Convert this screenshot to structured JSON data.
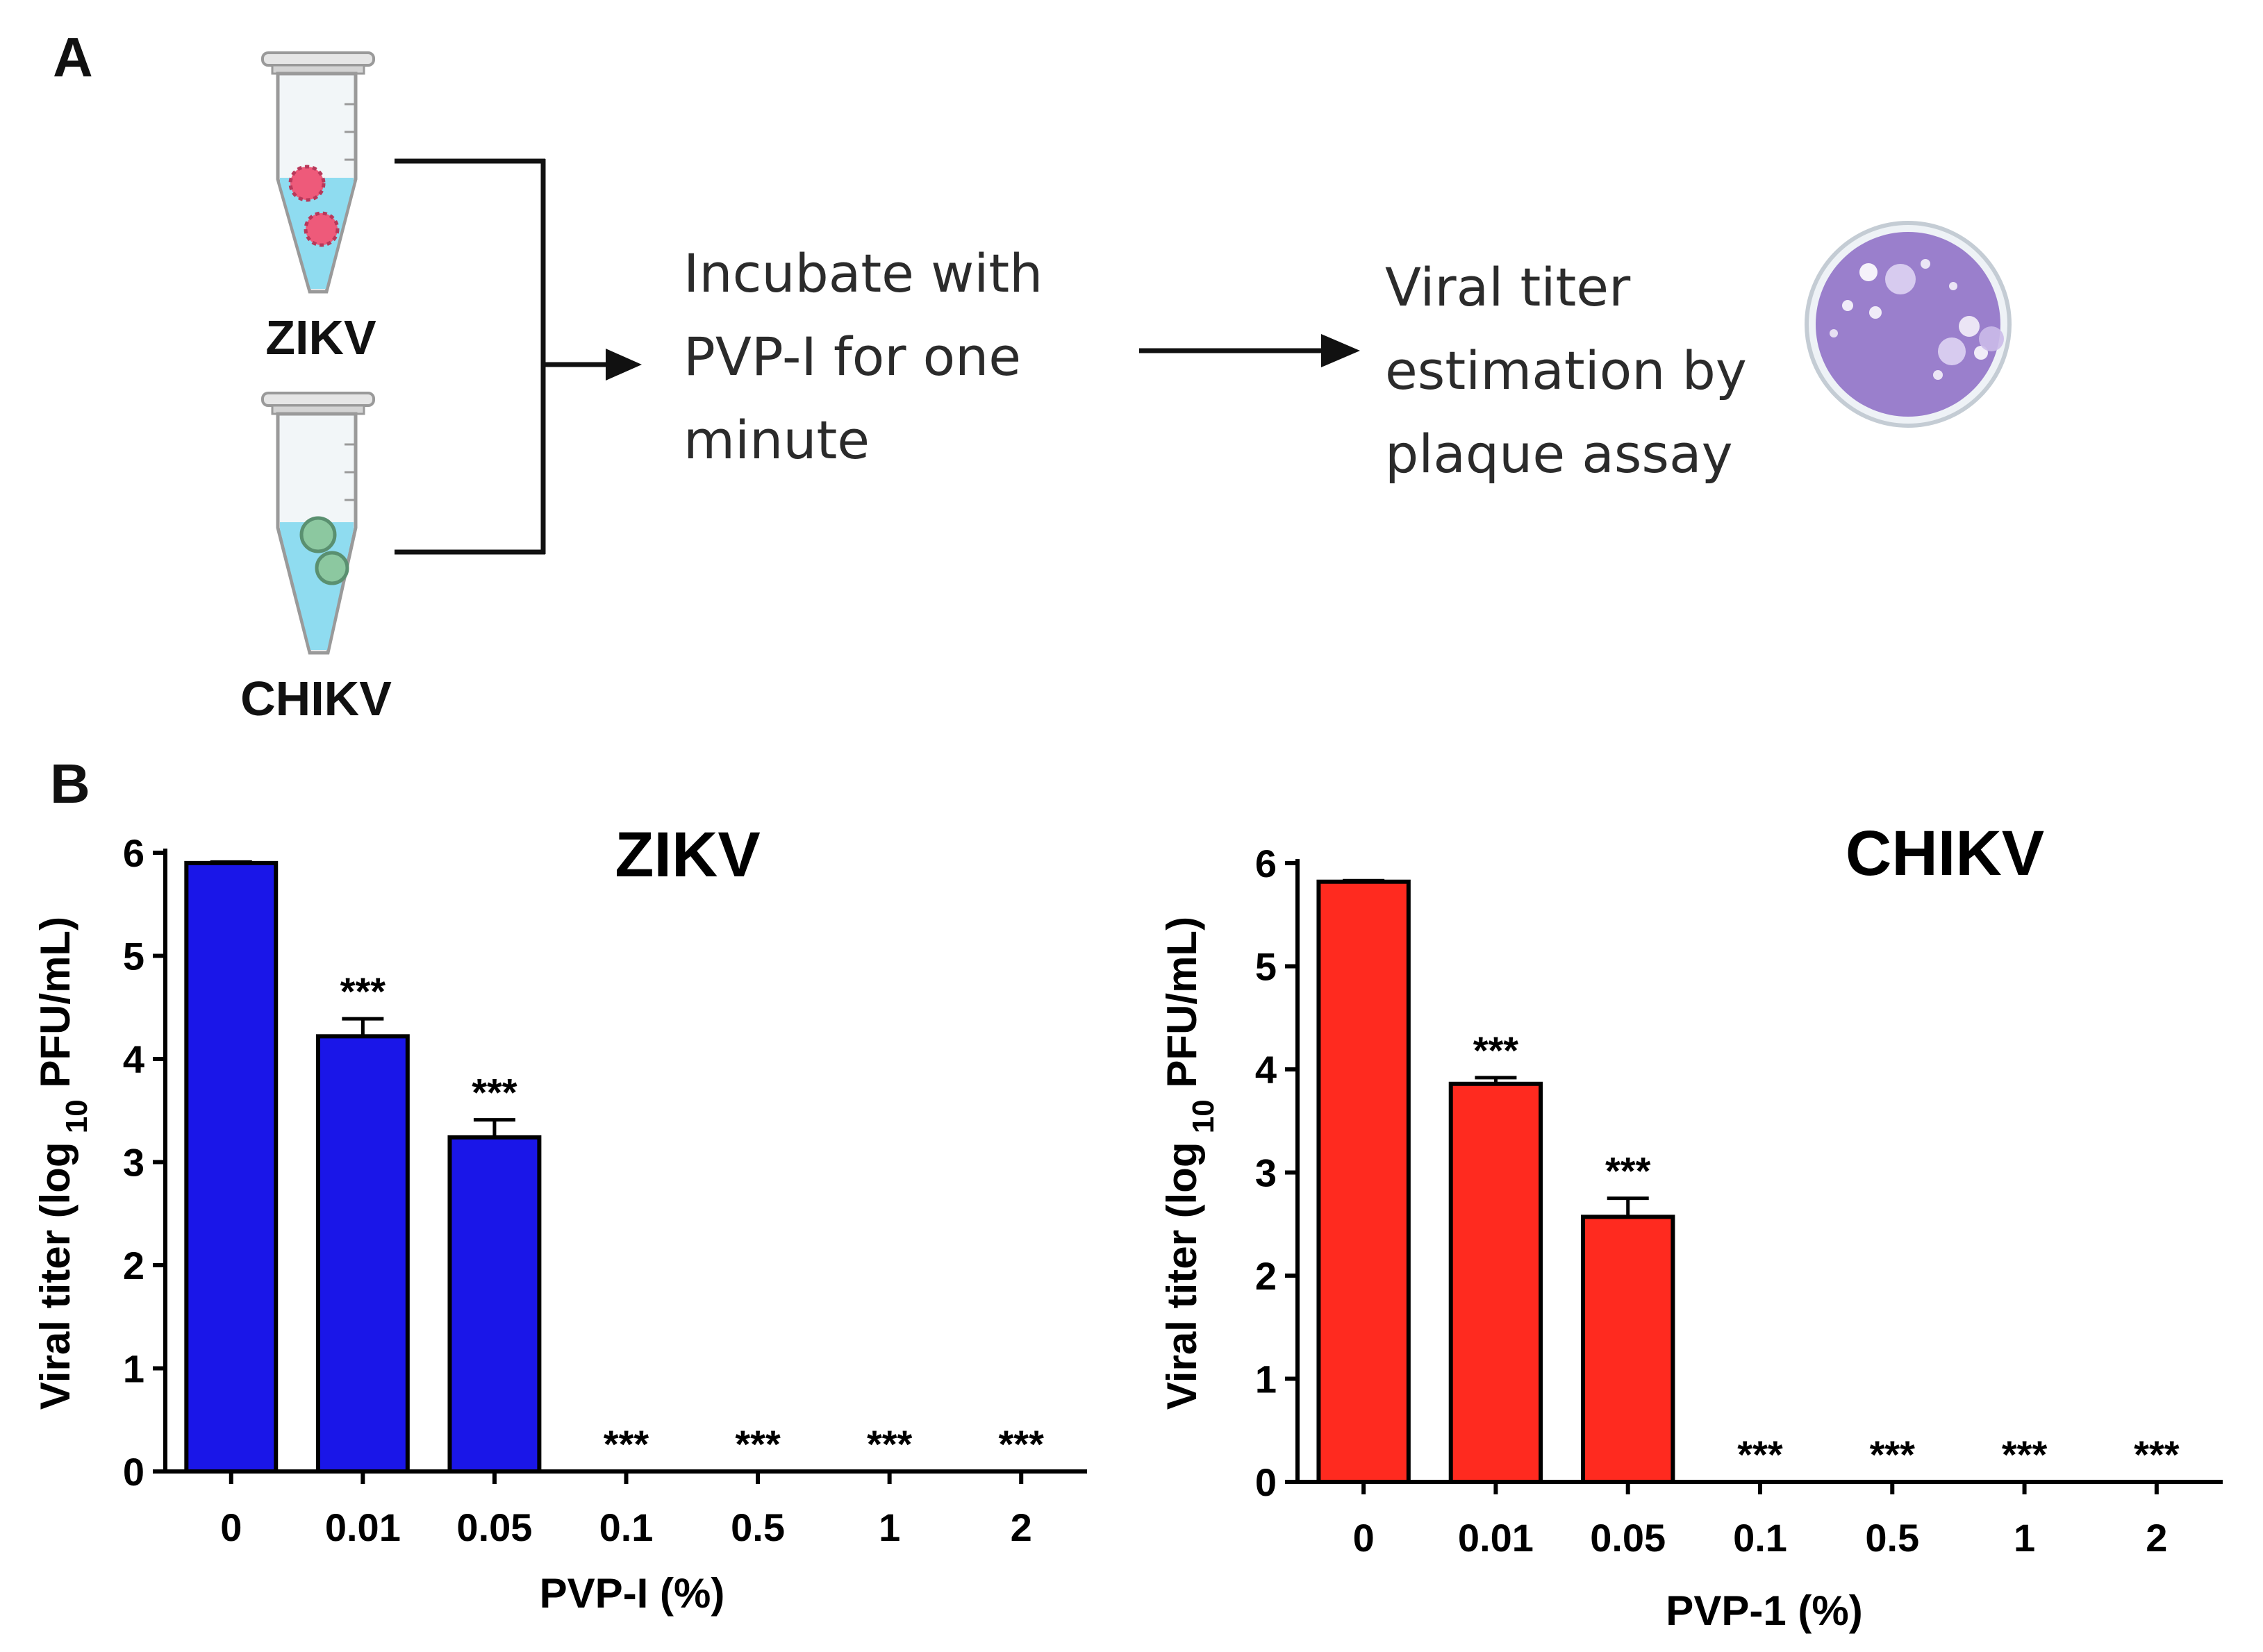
{
  "panel_a": {
    "letter": "A",
    "virus1": "ZIKV",
    "virus2": "CHIKV",
    "step1_lines": [
      "Incubate with",
      "PVP-I for one",
      "minute"
    ],
    "step2_lines": [
      "Viral titer",
      "estimation by",
      "plaque assay"
    ]
  },
  "panel_b": {
    "letter": "B"
  },
  "colors": {
    "zikv_bar": "#1a16e8",
    "chikv_bar": "#ff2a1f",
    "tube_fluid": "#8fdcf0",
    "zikv_virion": "#ee5a7a",
    "chikv_virion": "#8cc8a0",
    "plate": "#9a7fcc"
  },
  "chart_data": [
    {
      "type": "bar",
      "title": "ZIKV",
      "categories": [
        "0",
        "0.01",
        "0.05",
        "0.1",
        "0.5",
        "1",
        "2"
      ],
      "values": [
        5.9,
        4.22,
        3.24,
        0,
        0,
        0,
        0
      ],
      "error": [
        0.01,
        0.17,
        0.17,
        0,
        0,
        0,
        0
      ],
      "significance": [
        "",
        "***",
        "***",
        "***",
        "***",
        "***",
        "***"
      ],
      "xlabel": "PVP-I (%)",
      "ylabel_parts": [
        "Viral titer (log",
        "10",
        "PFU/mL)"
      ],
      "yticks": [
        0,
        1,
        2,
        3,
        4,
        5,
        6
      ],
      "ylim": [
        0,
        6
      ],
      "color": "#1a16e8",
      "grid": false
    },
    {
      "type": "bar",
      "title": "CHIKV",
      "categories": [
        "0",
        "0.01",
        "0.05",
        "0.1",
        "0.5",
        "1",
        "2"
      ],
      "values": [
        5.82,
        3.86,
        2.57,
        0,
        0,
        0,
        0
      ],
      "error": [
        0.01,
        0.06,
        0.18,
        0,
        0,
        0,
        0
      ],
      "significance": [
        "",
        "***",
        "***",
        "***",
        "***",
        "***",
        "***"
      ],
      "xlabel": "PVP-1 (%)",
      "ylabel_parts": [
        "Viral titer (log",
        "10",
        "PFU/mL)"
      ],
      "yticks": [
        0,
        1,
        2,
        3,
        4,
        5,
        6
      ],
      "ylim": [
        0,
        6
      ],
      "color": "#ff2a1f",
      "grid": false
    }
  ]
}
